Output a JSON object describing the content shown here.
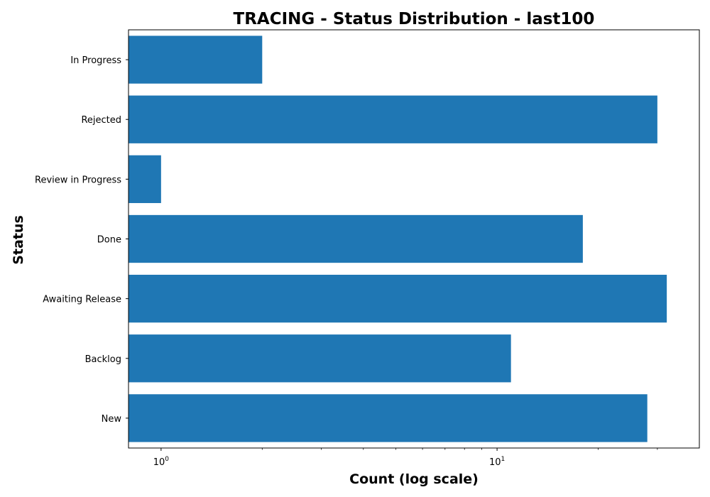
{
  "chart_data": {
    "type": "bar",
    "orientation": "horizontal",
    "title": "TRACING - Status Distribution - last100",
    "xlabel": "Count (log scale)",
    "ylabel": "Status",
    "x_scale": "log",
    "x_tick_labels": [
      {
        "base": "10",
        "exp": "0",
        "value": 1
      },
      {
        "base": "10",
        "exp": "1",
        "value": 10
      }
    ],
    "xlim": [
      0.8,
      40
    ],
    "categories": [
      "In Progress",
      "Rejected",
      "Review in Progress",
      "Done",
      "Awaiting Release",
      "Backlog",
      "New"
    ],
    "values": [
      2,
      30,
      1,
      18,
      32,
      11,
      28
    ],
    "bar_color": "#1f77b4",
    "grid": false,
    "legend": "none"
  }
}
